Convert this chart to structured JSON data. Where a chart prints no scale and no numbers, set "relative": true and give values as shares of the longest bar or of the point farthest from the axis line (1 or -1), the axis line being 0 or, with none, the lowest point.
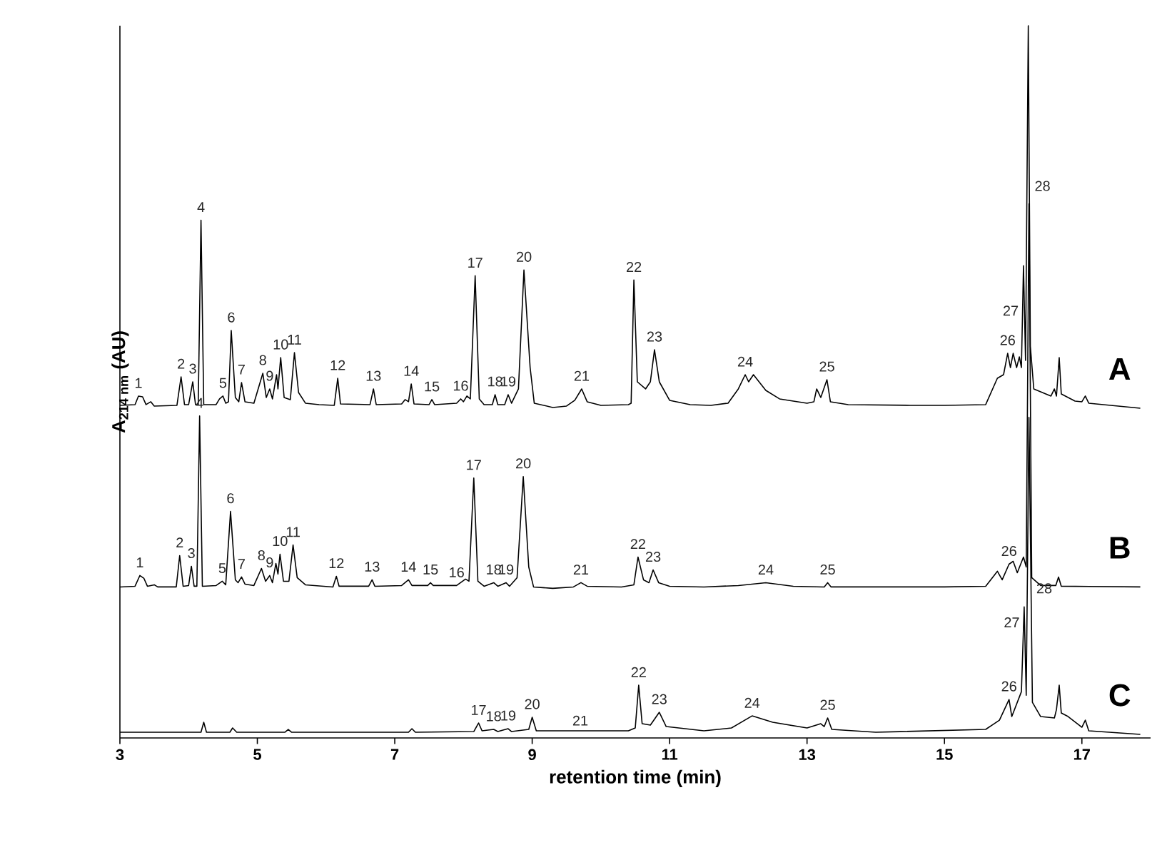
{
  "chart_data": {
    "type": "line",
    "relative": true,
    "xlabel": "retention time (min)",
    "ylabel": "A$_{214 nm}$ (AU)",
    "xlim": [
      3,
      18
    ],
    "xticks": [
      3,
      5,
      7,
      9,
      11,
      13,
      15,
      17
    ],
    "series": [
      {
        "name": "A",
        "color": "#000000",
        "x": [
          3.0,
          3.22,
          3.27,
          3.33,
          3.38,
          3.45,
          3.5,
          3.83,
          3.89,
          3.94,
          4.0,
          4.06,
          4.1,
          4.14,
          4.18,
          4.22,
          4.4,
          4.45,
          4.5,
          4.54,
          4.58,
          4.62,
          4.68,
          4.73,
          4.77,
          4.82,
          4.95,
          5.08,
          5.13,
          5.18,
          5.22,
          5.28,
          5.3,
          5.34,
          5.39,
          5.48,
          5.54,
          5.6,
          5.7,
          5.9,
          6.12,
          6.17,
          6.21,
          6.64,
          6.69,
          6.73,
          7.1,
          7.15,
          7.2,
          7.24,
          7.28,
          7.5,
          7.54,
          7.58,
          7.9,
          7.96,
          8.0,
          8.05,
          8.1,
          8.17,
          8.23,
          8.3,
          8.42,
          8.46,
          8.5,
          8.6,
          8.65,
          8.7,
          8.8,
          8.88,
          8.97,
          9.03,
          9.3,
          9.5,
          9.62,
          9.72,
          9.8,
          10.0,
          10.4,
          10.44,
          10.48,
          10.53,
          10.65,
          10.72,
          10.78,
          10.85,
          11.0,
          11.3,
          11.6,
          11.85,
          12.0,
          12.1,
          12.15,
          12.22,
          12.4,
          12.6,
          13.0,
          13.1,
          13.14,
          13.2,
          13.29,
          13.34,
          13.6,
          14.5,
          15.0,
          15.6,
          15.77,
          15.86,
          15.92,
          15.96,
          16.0,
          16.05,
          16.09,
          16.12,
          16.15,
          16.18,
          16.22,
          16.25,
          16.3,
          16.55,
          16.6,
          16.63,
          16.67,
          16.7,
          16.9,
          17.0,
          17.05,
          17.1,
          17.85
        ],
        "values": [
          0.467,
          0.468,
          0.48,
          0.479,
          0.468,
          0.472,
          0.466,
          0.467,
          0.507,
          0.468,
          0.468,
          0.5,
          0.468,
          0.468,
          0.727,
          0.468,
          0.468,
          0.476,
          0.48,
          0.47,
          0.472,
          0.572,
          0.478,
          0.472,
          0.499,
          0.472,
          0.47,
          0.512,
          0.478,
          0.49,
          0.476,
          0.51,
          0.49,
          0.534,
          0.478,
          0.475,
          0.541,
          0.485,
          0.47,
          0.468,
          0.467,
          0.505,
          0.469,
          0.468,
          0.49,
          0.468,
          0.469,
          0.475,
          0.472,
          0.497,
          0.469,
          0.468,
          0.475,
          0.468,
          0.47,
          0.476,
          0.472,
          0.48,
          0.476,
          0.649,
          0.476,
          0.468,
          0.468,
          0.482,
          0.468,
          0.468,
          0.482,
          0.47,
          0.49,
          0.657,
          0.52,
          0.47,
          0.464,
          0.466,
          0.474,
          0.49,
          0.472,
          0.467,
          0.468,
          0.47,
          0.643,
          0.5,
          0.49,
          0.5,
          0.545,
          0.5,
          0.474,
          0.468,
          0.467,
          0.47,
          0.49,
          0.51,
          0.5,
          0.51,
          0.488,
          0.476,
          0.47,
          0.472,
          0.49,
          0.478,
          0.503,
          0.472,
          0.468,
          0.467,
          0.467,
          0.468,
          0.505,
          0.51,
          0.54,
          0.52,
          0.54,
          0.52,
          0.535,
          0.52,
          0.663,
          0.53,
          1.0,
          0.55,
          0.49,
          0.48,
          0.49,
          0.48,
          0.534,
          0.483,
          0.473,
          0.472,
          0.48,
          0.47,
          0.463
        ]
      },
      {
        "name": "B",
        "color": "#000000",
        "x": [
          3.0,
          3.22,
          3.29,
          3.35,
          3.4,
          3.5,
          3.55,
          3.82,
          3.87,
          3.92,
          4.0,
          4.04,
          4.08,
          4.12,
          4.16,
          4.2,
          4.4,
          4.49,
          4.54,
          4.61,
          4.68,
          4.72,
          4.77,
          4.82,
          4.95,
          5.06,
          5.12,
          5.18,
          5.22,
          5.27,
          5.3,
          5.33,
          5.38,
          5.46,
          5.52,
          5.58,
          5.7,
          6.1,
          6.15,
          6.19,
          6.62,
          6.67,
          6.71,
          7.1,
          7.2,
          7.25,
          7.48,
          7.52,
          7.56,
          7.9,
          8.03,
          8.08,
          8.15,
          8.21,
          8.3,
          8.44,
          8.5,
          8.62,
          8.67,
          8.78,
          8.87,
          8.95,
          9.02,
          9.3,
          9.6,
          9.71,
          9.8,
          10.3,
          10.48,
          10.54,
          10.62,
          10.7,
          10.76,
          10.84,
          11.0,
          11.5,
          12.0,
          12.4,
          12.8,
          13.25,
          13.3,
          13.35,
          15.0,
          15.6,
          15.77,
          15.84,
          15.94,
          16.0,
          16.06,
          16.15,
          16.19,
          16.23,
          16.27,
          16.4,
          16.62,
          16.66,
          16.7,
          17.85
        ],
        "values": [
          0.212,
          0.213,
          0.228,
          0.224,
          0.213,
          0.215,
          0.212,
          0.212,
          0.256,
          0.213,
          0.214,
          0.241,
          0.213,
          0.213,
          0.452,
          0.213,
          0.214,
          0.22,
          0.215,
          0.318,
          0.222,
          0.218,
          0.226,
          0.216,
          0.214,
          0.238,
          0.22,
          0.228,
          0.218,
          0.245,
          0.23,
          0.258,
          0.22,
          0.22,
          0.271,
          0.225,
          0.215,
          0.212,
          0.227,
          0.213,
          0.213,
          0.222,
          0.213,
          0.214,
          0.222,
          0.214,
          0.214,
          0.218,
          0.214,
          0.214,
          0.223,
          0.22,
          0.365,
          0.22,
          0.213,
          0.218,
          0.213,
          0.218,
          0.213,
          0.225,
          0.367,
          0.24,
          0.212,
          0.21,
          0.212,
          0.218,
          0.213,
          0.212,
          0.215,
          0.254,
          0.222,
          0.218,
          0.236,
          0.218,
          0.213,
          0.212,
          0.214,
          0.218,
          0.213,
          0.212,
          0.218,
          0.212,
          0.212,
          0.213,
          0.234,
          0.222,
          0.244,
          0.248,
          0.232,
          0.254,
          0.24,
          0.75,
          0.225,
          0.214,
          0.214,
          0.226,
          0.213,
          0.212
        ]
      },
      {
        "name": "C",
        "color": "#000000",
        "x": [
          3.0,
          4.18,
          4.22,
          4.26,
          4.6,
          4.64,
          4.7,
          5.4,
          5.45,
          5.5,
          7.2,
          7.25,
          7.3,
          8.15,
          8.22,
          8.27,
          8.44,
          8.5,
          8.65,
          8.7,
          8.95,
          9.0,
          9.06,
          10.4,
          10.5,
          10.55,
          10.6,
          10.72,
          10.85,
          10.95,
          11.5,
          11.9,
          12.2,
          12.5,
          13.0,
          13.2,
          13.25,
          13.3,
          13.36,
          14.0,
          15.6,
          15.8,
          15.94,
          15.98,
          16.12,
          16.16,
          16.19,
          16.23,
          16.28,
          16.4,
          16.6,
          16.63,
          16.67,
          16.7,
          16.8,
          17.0,
          17.05,
          17.1,
          17.85
        ],
        "values": [
          0.008,
          0.008,
          0.022,
          0.008,
          0.008,
          0.014,
          0.008,
          0.008,
          0.012,
          0.008,
          0.008,
          0.013,
          0.008,
          0.009,
          0.021,
          0.01,
          0.012,
          0.009,
          0.013,
          0.009,
          0.012,
          0.029,
          0.01,
          0.01,
          0.014,
          0.074,
          0.02,
          0.018,
          0.036,
          0.016,
          0.01,
          0.014,
          0.031,
          0.022,
          0.014,
          0.02,
          0.016,
          0.028,
          0.012,
          0.008,
          0.012,
          0.025,
          0.054,
          0.03,
          0.065,
          0.184,
          0.06,
          0.45,
          0.05,
          0.03,
          0.028,
          0.04,
          0.074,
          0.035,
          0.03,
          0.015,
          0.025,
          0.01,
          0.005
        ]
      }
    ],
    "annotations": [
      {
        "text": "1",
        "x": 3.27,
        "y": 0.48
      },
      {
        "text": "2",
        "x": 3.89,
        "y": 0.507
      },
      {
        "text": "3",
        "x": 4.06,
        "y": 0.5
      },
      {
        "text": "4",
        "x": 4.18,
        "y": 0.727
      },
      {
        "text": "5",
        "x": 4.5,
        "y": 0.48
      },
      {
        "text": "6",
        "x": 4.62,
        "y": 0.572
      },
      {
        "text": "7",
        "x": 4.77,
        "y": 0.499
      },
      {
        "text": "8",
        "x": 5.08,
        "y": 0.512
      },
      {
        "text": "9",
        "x": 5.18,
        "y": 0.49
      },
      {
        "text": "10",
        "x": 5.34,
        "y": 0.534
      },
      {
        "text": "11",
        "x": 5.54,
        "y": 0.541
      },
      {
        "text": "12",
        "x": 6.17,
        "y": 0.505
      },
      {
        "text": "13",
        "x": 6.69,
        "y": 0.49
      },
      {
        "text": "14",
        "x": 7.24,
        "y": 0.497
      },
      {
        "text": "15",
        "x": 7.54,
        "y": 0.475
      },
      {
        "text": "16",
        "x": 7.96,
        "y": 0.476
      },
      {
        "text": "17",
        "x": 8.17,
        "y": 0.649
      },
      {
        "text": "18",
        "x": 8.46,
        "y": 0.482
      },
      {
        "text": "19",
        "x": 8.65,
        "y": 0.482
      },
      {
        "text": "20",
        "x": 8.88,
        "y": 0.657
      },
      {
        "text": "21",
        "x": 9.72,
        "y": 0.49
      },
      {
        "text": "22",
        "x": 10.48,
        "y": 0.643
      },
      {
        "text": "23",
        "x": 10.78,
        "y": 0.545
      },
      {
        "text": "24",
        "x": 12.1,
        "y": 0.51
      },
      {
        "text": "25",
        "x": 13.29,
        "y": 0.503
      },
      {
        "text": "26",
        "x": 15.92,
        "y": 0.54
      },
      {
        "text": "27",
        "x": 16.135,
        "y": 0.5915
      },
      {
        "text": "28",
        "x": 16.235,
        "y": 0.775
      },
      {
        "text": "1",
        "x": 3.29,
        "y": 0.228
      },
      {
        "text": "2",
        "x": 3.87,
        "y": 0.256
      },
      {
        "text": "3",
        "x": 4.04,
        "y": 0.241
      },
      {
        "text": "4",
        "x": 4.16,
        "y": 0.452
      },
      {
        "text": "5",
        "x": 4.49,
        "y": 0.22
      },
      {
        "text": "6",
        "x": 4.61,
        "y": 0.318
      },
      {
        "text": "7",
        "x": 4.77,
        "y": 0.226
      },
      {
        "text": "8",
        "x": 5.06,
        "y": 0.238
      },
      {
        "text": "9",
        "x": 5.18,
        "y": 0.228
      },
      {
        "text": "10",
        "x": 5.33,
        "y": 0.258
      },
      {
        "text": "11",
        "x": 5.52,
        "y": 0.271
      },
      {
        "text": "12",
        "x": 6.15,
        "y": 0.227
      },
      {
        "text": "13",
        "x": 6.67,
        "y": 0.222
      },
      {
        "text": "14",
        "x": 7.2,
        "y": 0.222
      },
      {
        "text": "15",
        "x": 7.52,
        "y": 0.218
      },
      {
        "text": "16",
        "x": 7.9,
        "y": 0.214
      },
      {
        "text": "17",
        "x": 8.15,
        "y": 0.365
      },
      {
        "text": "18",
        "x": 8.44,
        "y": 0.218
      },
      {
        "text": "19",
        "x": 8.62,
        "y": 0.218
      },
      {
        "text": "20",
        "x": 8.87,
        "y": 0.367
      },
      {
        "text": "21",
        "x": 9.71,
        "y": 0.218
      },
      {
        "text": "22",
        "x": 10.54,
        "y": 0.254
      },
      {
        "text": "23",
        "x": 10.76,
        "y": 0.236
      },
      {
        "text": "24",
        "x": 12.4,
        "y": 0.218
      },
      {
        "text": "25",
        "x": 13.3,
        "y": 0.218
      },
      {
        "text": "26",
        "x": 15.94,
        "y": 0.244
      },
      {
        "text": "17",
        "x": 8.22,
        "y": 0.021
      },
      {
        "text": "18",
        "x": 8.44,
        "y": 0.012
      },
      {
        "text": "19",
        "x": 8.65,
        "y": 0.013
      },
      {
        "text": "20",
        "x": 9.0,
        "y": 0.029
      },
      {
        "text": "21",
        "x": 9.7,
        "y": 0.01
      },
      {
        "text": "22",
        "x": 10.55,
        "y": 0.074
      },
      {
        "text": "23",
        "x": 10.85,
        "y": 0.036
      },
      {
        "text": "24",
        "x": 12.2,
        "y": 0.031
      },
      {
        "text": "25",
        "x": 13.3,
        "y": 0.028
      },
      {
        "text": "26",
        "x": 15.94,
        "y": 0.054
      },
      {
        "text": "27",
        "x": 16.15,
        "y": 0.154
      },
      {
        "text": "28",
        "x": 16.26,
        "y": 0.21
      }
    ]
  }
}
